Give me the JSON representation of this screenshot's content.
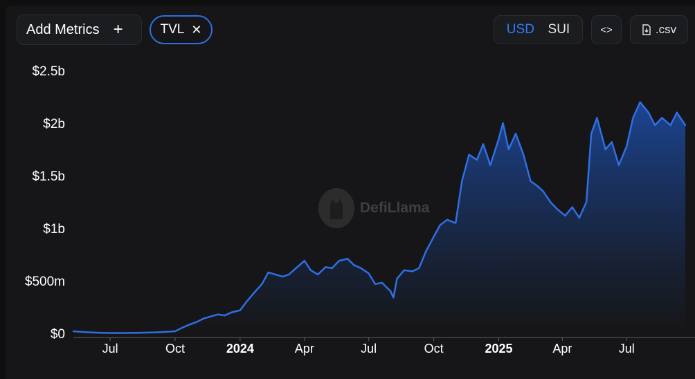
{
  "toolbar": {
    "add_metrics_label": "Add Metrics",
    "add_icon": "plus-icon",
    "metric_chip_label": "TVL",
    "remove_icon": "close-icon",
    "currency_options": [
      "USD",
      "SUI"
    ],
    "currency_selected": "USD",
    "embed_icon": "code-icon",
    "csv_label": ".csv",
    "csv_icon": "download-file-icon"
  },
  "watermark": {
    "text": "DefiLlama"
  },
  "colors": {
    "line": "#2f6fe4",
    "accent": "#2f7bff"
  },
  "chart_data": {
    "type": "area",
    "title": "",
    "xlabel": "",
    "ylabel": "",
    "ylim": [
      0,
      2500000000
    ],
    "y_ticks": [
      {
        "value": 0,
        "label": "$0"
      },
      {
        "value": 500000000,
        "label": "$500m"
      },
      {
        "value": 1000000000,
        "label": "$1b"
      },
      {
        "value": 1500000000,
        "label": "$1.5b"
      },
      {
        "value": 2000000000,
        "label": "$2b"
      },
      {
        "value": 2500000000,
        "label": "$2.5b"
      }
    ],
    "xlim": [
      "2023-05-10",
      "2025-09-22"
    ],
    "x_ticks": [
      {
        "date": "2023-07-01",
        "label": "Jul",
        "bold": false
      },
      {
        "date": "2023-10-01",
        "label": "Oct",
        "bold": false
      },
      {
        "date": "2024-01-01",
        "label": "2024",
        "bold": true
      },
      {
        "date": "2024-04-01",
        "label": "Apr",
        "bold": false
      },
      {
        "date": "2024-07-01",
        "label": "Jul",
        "bold": false
      },
      {
        "date": "2024-10-01",
        "label": "Oct",
        "bold": false
      },
      {
        "date": "2025-01-01",
        "label": "2025",
        "bold": true
      },
      {
        "date": "2025-04-01",
        "label": "Apr",
        "bold": false
      },
      {
        "date": "2025-07-01",
        "label": "Jul",
        "bold": false
      }
    ],
    "grid": false,
    "series": [
      {
        "x": [
          "2023-05-10",
          "2023-05-20",
          "2023-06-01",
          "2023-06-15",
          "2023-07-01",
          "2023-07-15",
          "2023-08-01",
          "2023-08-15",
          "2023-09-01",
          "2023-09-15",
          "2023-10-01",
          "2023-10-10",
          "2023-10-20",
          "2023-11-01",
          "2023-11-10",
          "2023-11-20",
          "2023-12-01",
          "2023-12-10",
          "2023-12-20",
          "2024-01-01",
          "2024-01-10",
          "2024-01-20",
          "2024-02-01",
          "2024-02-10",
          "2024-02-20",
          "2024-03-01",
          "2024-03-10",
          "2024-03-20",
          "2024-04-01",
          "2024-04-10",
          "2024-04-20",
          "2024-05-01",
          "2024-05-10",
          "2024-05-20",
          "2024-06-01",
          "2024-06-10",
          "2024-06-20",
          "2024-07-01",
          "2024-07-10",
          "2024-07-20",
          "2024-08-01",
          "2024-08-05",
          "2024-08-10",
          "2024-08-20",
          "2024-09-01",
          "2024-09-10",
          "2024-09-20",
          "2024-10-01",
          "2024-10-10",
          "2024-10-20",
          "2024-11-01",
          "2024-11-10",
          "2024-11-20",
          "2024-12-01",
          "2024-12-10",
          "2024-12-20",
          "2025-01-01",
          "2025-01-07",
          "2025-01-15",
          "2025-01-25",
          "2025-02-05",
          "2025-02-15",
          "2025-02-25",
          "2025-03-05",
          "2025-03-15",
          "2025-03-25",
          "2025-04-05",
          "2025-04-15",
          "2025-04-25",
          "2025-05-05",
          "2025-05-12",
          "2025-05-20",
          "2025-06-01",
          "2025-06-10",
          "2025-06-20",
          "2025-07-01",
          "2025-07-10",
          "2025-07-20",
          "2025-08-01",
          "2025-08-10",
          "2025-08-20",
          "2025-09-01",
          "2025-09-10",
          "2025-09-22"
        ],
        "values": [
          20000000,
          15000000,
          10000000,
          6000000,
          3000000,
          3000000,
          4000000,
          6000000,
          9000000,
          13000000,
          20000000,
          50000000,
          80000000,
          110000000,
          140000000,
          160000000,
          180000000,
          170000000,
          200000000,
          220000000,
          300000000,
          380000000,
          470000000,
          580000000,
          560000000,
          540000000,
          560000000,
          620000000,
          690000000,
          600000000,
          560000000,
          630000000,
          620000000,
          690000000,
          710000000,
          650000000,
          620000000,
          570000000,
          470000000,
          480000000,
          400000000,
          340000000,
          520000000,
          600000000,
          590000000,
          620000000,
          780000000,
          920000000,
          1030000000,
          1080000000,
          1050000000,
          1450000000,
          1700000000,
          1650000000,
          1800000000,
          1600000000,
          1850000000,
          2000000000,
          1750000000,
          1900000000,
          1700000000,
          1450000000,
          1400000000,
          1350000000,
          1250000000,
          1180000000,
          1120000000,
          1200000000,
          1100000000,
          1250000000,
          1900000000,
          2050000000,
          1750000000,
          1820000000,
          1600000000,
          1780000000,
          2050000000,
          2200000000,
          2100000000,
          1980000000,
          2050000000,
          1980000000,
          2100000000,
          1980000000
        ]
      }
    ]
  }
}
